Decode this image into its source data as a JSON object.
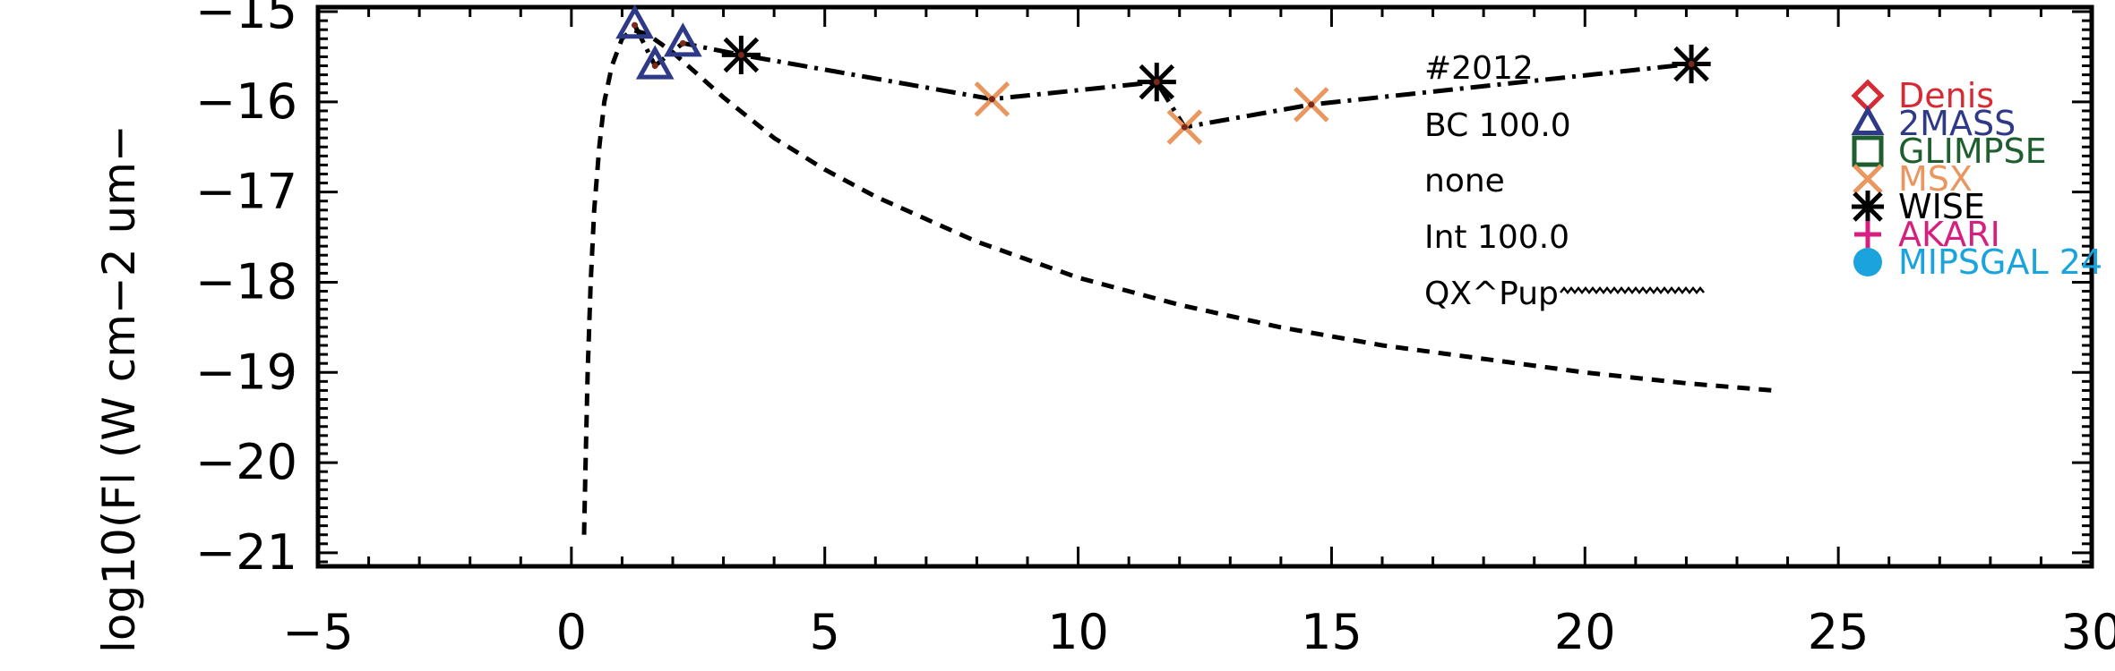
{
  "chart_data": {
    "type": "scatter",
    "ylabel": "log10(Fl (W cm−2 um−",
    "xlim": [
      -5,
      30
    ],
    "ylim": [
      -21.15,
      -14.95
    ],
    "x_ticks": [
      -5,
      0,
      5,
      10,
      15,
      20,
      25,
      30
    ],
    "x_tick_labels": [
      "−5",
      "0",
      "5",
      "10",
      "15",
      "20",
      "25",
      "30"
    ],
    "y_ticks": [
      -15,
      -16,
      -17,
      -18,
      -19,
      -20,
      -21
    ],
    "y_tick_labels": [
      "−15",
      "−16",
      "−17",
      "−18",
      "−19",
      "−20",
      "−21"
    ],
    "annotations": [
      "#2012",
      "BC 100.0",
      "none",
      "Int 100.0",
      "QX^Pup"
    ],
    "legend": [
      {
        "label": "Denis",
        "marker": "diamond",
        "color": "#d62a34"
      },
      {
        "label": "2MASS",
        "marker": "triangle",
        "color": "#2e3a87"
      },
      {
        "label": "GLIMPSE",
        "marker": "square",
        "color": "#1f5e2e"
      },
      {
        "label": "MSX",
        "marker": "x",
        "color": "#e9965f"
      },
      {
        "label": "WISE",
        "marker": "asterisk",
        "color": "#000000"
      },
      {
        "label": "AKARI",
        "marker": "plus",
        "color": "#d61f7e"
      },
      {
        "label": "MIPSGAL 24",
        "marker": "circle",
        "color": "#1aa3dd"
      }
    ],
    "series": [
      {
        "marker": "triangle",
        "color": "#2e3a87",
        "x": [
          1.25,
          1.65,
          2.2
        ],
        "y": [
          -15.15,
          -15.6,
          -15.35
        ]
      },
      {
        "marker": "x",
        "color": "#e9965f",
        "x": [
          8.3,
          12.1,
          14.6
        ],
        "y": [
          -15.97,
          -16.28,
          -16.03
        ]
      },
      {
        "marker": "asterisk",
        "color": "#000000",
        "x": [
          3.35,
          11.55,
          22.1
        ],
        "y": [
          -15.48,
          -15.78,
          -15.58
        ]
      },
      {
        "line": "dash-dot",
        "color": "#000000",
        "x": [
          1.25,
          1.65,
          2.2,
          3.35,
          8.3,
          11.55,
          12.1,
          14.6,
          22.1
        ],
        "y": [
          -15.15,
          -15.6,
          -15.35,
          -15.48,
          -15.97,
          -15.78,
          -16.28,
          -16.03,
          -15.58
        ]
      },
      {
        "line": "dashed",
        "color": "#000000",
        "x": [
          0.25,
          0.28,
          0.32,
          0.38,
          0.45,
          0.55,
          0.65,
          0.8,
          1.0,
          1.2,
          1.5,
          2.0,
          3.0,
          4.0,
          5.0,
          6.0,
          8.0,
          10.0,
          12.0,
          14.0,
          16.0,
          18.0,
          20.0,
          22.0,
          23.7
        ],
        "y": [
          -20.8,
          -20.0,
          -19.0,
          -18.0,
          -17.2,
          -16.5,
          -16.0,
          -15.6,
          -15.3,
          -15.2,
          -15.25,
          -15.45,
          -15.95,
          -16.4,
          -16.75,
          -17.05,
          -17.55,
          -17.95,
          -18.25,
          -18.5,
          -18.7,
          -18.85,
          -19.0,
          -19.12,
          -19.2
        ]
      }
    ]
  }
}
